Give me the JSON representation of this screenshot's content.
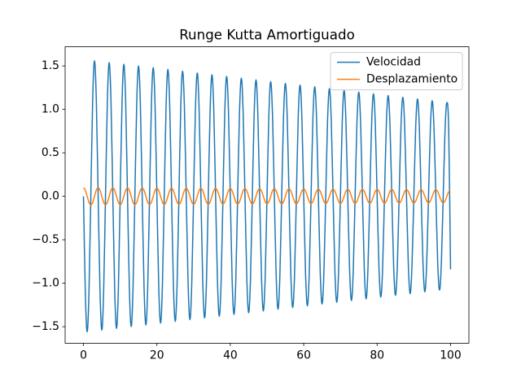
{
  "chart_data": {
    "type": "line",
    "title": "Runge Kutta Amortiguado",
    "x": [
      0,
      0.5,
      1,
      1.5,
      2,
      2.5,
      3,
      3.5,
      4,
      4.5,
      5,
      5.5,
      6,
      6.5,
      7,
      7.5,
      8,
      8.5,
      9,
      9.5,
      10,
      10.5,
      11,
      11.5,
      12,
      12.5,
      13,
      13.5,
      14,
      14.5,
      15,
      15.5,
      16,
      16.5,
      17,
      17.5,
      18,
      18.5,
      19,
      19.5,
      20,
      20.5,
      21,
      21.5,
      22,
      22.5,
      23,
      23.5,
      24,
      24.5,
      25,
      25.5,
      26,
      26.5,
      27,
      27.5,
      28,
      28.5,
      29,
      29.5,
      30,
      30.5,
      31,
      31.5,
      32,
      32.5,
      33,
      33.5,
      34,
      34.5,
      35,
      35.5,
      36,
      36.5,
      37,
      37.5,
      38,
      38.5,
      39,
      39.5,
      40,
      40.5,
      41,
      41.5,
      42,
      42.5,
      43,
      43.5,
      44,
      44.5,
      45,
      45.5,
      46,
      46.5,
      47,
      47.5,
      48,
      48.5,
      49,
      49.5,
      50,
      50.5,
      51,
      51.5,
      52,
      52.5,
      53,
      53.5,
      54,
      54.5,
      55,
      55.5,
      56,
      56.5,
      57,
      57.5,
      58,
      58.5,
      59,
      59.5,
      60,
      60.5,
      61,
      61.5,
      62,
      62.5,
      63,
      63.5,
      64,
      64.5,
      65,
      65.5,
      66,
      66.5,
      67,
      67.5,
      68,
      68.5,
      69,
      69.5,
      70,
      70.5,
      71,
      71.5,
      72,
      72.5,
      73,
      73.5,
      74,
      74.5,
      75,
      75.5,
      76,
      76.5,
      77,
      77.5,
      78,
      78.5,
      79,
      79.5,
      80,
      80.5,
      81,
      81.5,
      82,
      82.5,
      83,
      83.5,
      84,
      84.5,
      85,
      85.5,
      86,
      86.5,
      87,
      87.5,
      88,
      88.5,
      89,
      89.5,
      90,
      90.5,
      91,
      91.5,
      92,
      92.5,
      93,
      93.5,
      94,
      94.5,
      95,
      95.5,
      96,
      96.5,
      97,
      97.5,
      98,
      98.5,
      99,
      99.5,
      100
    ],
    "series": [
      {
        "name": "Velocidad",
        "color": "#1f77b4",
        "values": [
          0,
          -1.103,
          -1.56,
          -1.103,
          0,
          1.103,
          1.56,
          1.103,
          0,
          -1.089,
          -1.54,
          -1.089,
          0,
          1.089,
          1.54,
          1.089,
          0,
          -1.075,
          -1.52,
          -1.075,
          0,
          1.075,
          1.52,
          1.075,
          0,
          -1.061,
          -1.5,
          -1.061,
          0,
          1.061,
          1.5,
          1.061,
          0,
          -1.046,
          -1.48,
          -1.046,
          0,
          1.046,
          1.48,
          1.046,
          0,
          -1.032,
          -1.46,
          -1.032,
          0,
          1.032,
          1.46,
          1.032,
          0,
          -1.018,
          -1.44,
          -1.018,
          0,
          1.018,
          1.44,
          1.018,
          0,
          -1.004,
          -1.42,
          -1.004,
          0,
          1.004,
          1.42,
          1.004,
          0,
          -0.99,
          -1.4,
          -0.99,
          0,
          0.99,
          1.4,
          0.99,
          0,
          -0.976,
          -1.38,
          -0.976,
          0,
          0.976,
          1.38,
          0.976,
          0,
          -0.962,
          -1.36,
          -0.962,
          0,
          0.962,
          1.36,
          0.962,
          0,
          -0.947,
          -1.34,
          -0.947,
          0,
          0.947,
          1.34,
          0.947,
          0,
          -0.933,
          -1.32,
          -0.933,
          0,
          0.933,
          1.32,
          0.933,
          0,
          -0.919,
          -1.3,
          -0.919,
          0,
          0.919,
          1.3,
          0.919,
          0,
          -0.905,
          -1.28,
          -0.905,
          0,
          0.905,
          1.28,
          0.905,
          0,
          -0.891,
          -1.26,
          -0.891,
          0,
          0.891,
          1.26,
          0.891,
          0,
          -0.877,
          -1.24,
          -0.877,
          0,
          0.877,
          1.24,
          0.877,
          0,
          -0.863,
          -1.22,
          -0.863,
          0,
          0.863,
          1.22,
          0.863,
          0,
          -0.848,
          -1.2,
          -0.848,
          0,
          0.848,
          1.2,
          0.848,
          0,
          -0.834,
          -1.18,
          -0.834,
          0,
          0.834,
          1.18,
          0.834,
          0,
          -0.82,
          -1.16,
          -0.82,
          0,
          0.82,
          1.16,
          0.82,
          0,
          -0.806,
          -1.14,
          -0.806,
          0,
          0.806,
          1.14,
          0.806,
          0,
          -0.792,
          -1.12,
          -0.792,
          0,
          0.792,
          1.12,
          0.792,
          0,
          -0.778,
          -1.1,
          -0.778,
          0,
          0.778,
          1.1,
          0.778,
          0,
          -0.764,
          -1.08,
          -0.764,
          0,
          0.764,
          1.08,
          0.764,
          -0.84
        ]
      },
      {
        "name": "Desplazamiento",
        "color": "#ff7f0e",
        "values": [
          0.1,
          0.071,
          0,
          -0.071,
          -0.1,
          -0.071,
          0,
          0.071,
          0.099,
          0.07,
          0,
          -0.07,
          -0.099,
          -0.07,
          0,
          0.07,
          0.098,
          0.069,
          0,
          -0.069,
          -0.098,
          -0.069,
          0,
          0.069,
          0.097,
          0.069,
          0,
          -0.069,
          -0.097,
          -0.069,
          0,
          0.069,
          0.096,
          0.068,
          0,
          -0.068,
          -0.096,
          -0.068,
          0,
          0.068,
          0.095,
          0.067,
          0,
          -0.067,
          -0.095,
          -0.067,
          0,
          0.067,
          0.094,
          0.066,
          0,
          -0.066,
          -0.094,
          -0.066,
          0,
          0.066,
          0.093,
          0.066,
          0,
          -0.066,
          -0.093,
          -0.066,
          0,
          0.066,
          0.092,
          0.065,
          0,
          -0.065,
          -0.092,
          -0.065,
          0,
          0.065,
          0.091,
          0.064,
          0,
          -0.064,
          -0.091,
          -0.064,
          0,
          0.064,
          0.09,
          0.064,
          0,
          -0.064,
          -0.09,
          -0.064,
          0,
          0.064,
          0.089,
          0.063,
          0,
          -0.063,
          -0.089,
          -0.063,
          0,
          0.063,
          0.088,
          0.062,
          0,
          -0.062,
          -0.088,
          -0.062,
          0,
          0.062,
          0.087,
          0.062,
          0,
          -0.062,
          -0.087,
          -0.062,
          0,
          0.062,
          0.086,
          0.061,
          0,
          -0.061,
          -0.086,
          -0.061,
          0,
          0.061,
          0.085,
          0.06,
          0,
          -0.06,
          -0.085,
          -0.06,
          0,
          0.06,
          0.084,
          0.059,
          0,
          -0.059,
          -0.084,
          -0.059,
          0,
          0.059,
          0.083,
          0.059,
          0,
          -0.059,
          -0.083,
          -0.059,
          0,
          0.059,
          0.082,
          0.058,
          0,
          -0.058,
          -0.082,
          -0.058,
          0,
          0.058,
          0.081,
          0.057,
          0,
          -0.057,
          -0.081,
          -0.057,
          0,
          0.057,
          0.08,
          0.057,
          0,
          -0.057,
          -0.08,
          -0.057,
          0,
          0.057,
          0.079,
          0.056,
          0,
          -0.056,
          -0.079,
          -0.056,
          0,
          0.056,
          0.078,
          0.055,
          0,
          -0.055,
          -0.078,
          -0.055,
          0,
          0.055,
          0.077,
          0.054,
          0,
          -0.054,
          -0.077,
          -0.054,
          0,
          0.054,
          0.076,
          0.054,
          0,
          -0.054,
          -0.076,
          -0.054,
          0,
          0.054,
          0.05
        ]
      }
    ],
    "xlim": [
      -5,
      105
    ],
    "xticks": [
      0,
      20,
      40,
      60,
      80,
      100
    ],
    "ylim": [
      -1.69,
      1.72
    ],
    "yticks": [
      {
        "value": -1.5,
        "label": "−1.5"
      },
      {
        "value": -1.0,
        "label": "−1.0"
      },
      {
        "value": -0.5,
        "label": "−0.5"
      },
      {
        "value": 0,
        "label": "0.0"
      },
      0.5,
      {
        "value": 1.0,
        "label": "1.0"
      },
      1.5
    ],
    "legend": "upper right"
  }
}
